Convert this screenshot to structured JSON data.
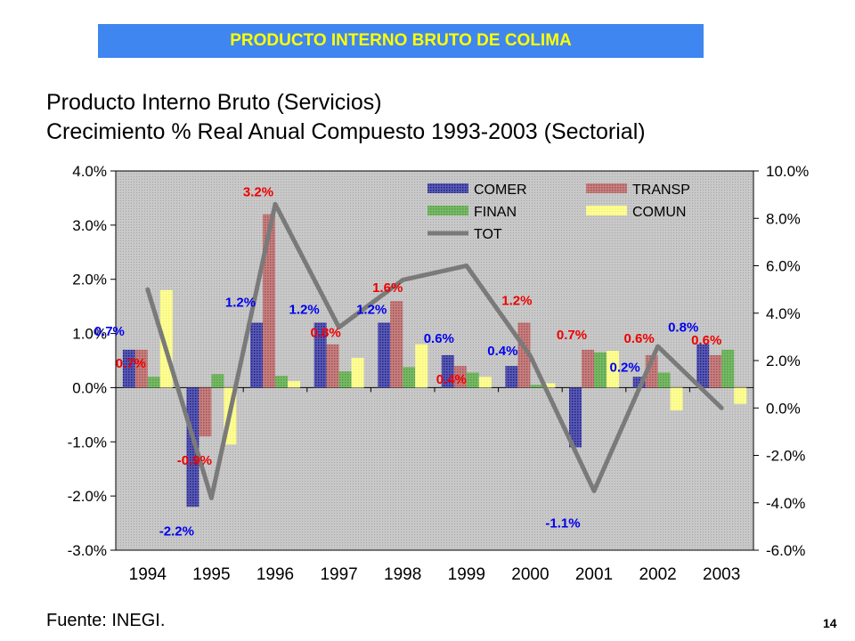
{
  "header": {
    "banner": "PRODUCTO INTERNO BRUTO DE COLIMA"
  },
  "titles": {
    "line1": "Producto Interno Bruto (Servicios)",
    "line2": "Crecimiento % Real Anual Compuesto 1993-2003 (Sectorial)"
  },
  "footer": {
    "source": "Fuente: INEGI.",
    "page": "14"
  },
  "colors": {
    "COMER": "#3a3a9a",
    "TRANSP": "#b86a6a",
    "FINAN": "#66aa55",
    "COMUN": "#ffff88",
    "TOT": "#7a7a7a",
    "label_blue": "#0000ee",
    "label_red": "#ee0000",
    "plot_bg": "#c8c8c8"
  },
  "chart_data": {
    "type": "bar",
    "categories": [
      "1994",
      "1995",
      "1996",
      "1997",
      "1998",
      "1999",
      "2000",
      "2001",
      "2002",
      "2003"
    ],
    "y_left": {
      "ticks": [
        "4.0%",
        "3.0%",
        "2.0%",
        "1.0%",
        "0.0%",
        "-1.0%",
        "-2.0%",
        "-3.0%"
      ],
      "min": -3.0,
      "max": 4.0,
      "step": 1.0
    },
    "y_right": {
      "ticks": [
        "10.0%",
        "8.0%",
        "6.0%",
        "4.0%",
        "2.0%",
        "0.0%",
        "-2.0%",
        "-4.0%",
        "-6.0%"
      ],
      "min": -6.0,
      "max": 10.0,
      "step": 2.0
    },
    "series": [
      {
        "name": "COMER",
        "axis": "left",
        "kind": "bar",
        "values": [
          0.7,
          -2.2,
          1.2,
          1.2,
          1.2,
          0.6,
          0.4,
          -1.1,
          0.2,
          0.8
        ]
      },
      {
        "name": "TRANSP",
        "axis": "left",
        "kind": "bar",
        "values": [
          0.7,
          -0.9,
          3.2,
          0.8,
          1.6,
          0.4,
          1.2,
          0.7,
          0.6,
          0.6
        ]
      },
      {
        "name": "FINAN",
        "axis": "left",
        "kind": "bar",
        "values": [
          0.2,
          0.25,
          0.22,
          0.3,
          0.38,
          0.28,
          0.05,
          0.65,
          0.28,
          0.7
        ]
      },
      {
        "name": "COMUN",
        "axis": "left",
        "kind": "bar",
        "values": [
          1.8,
          -1.05,
          0.12,
          0.55,
          0.8,
          0.2,
          0.08,
          0.68,
          -0.42,
          -0.3
        ]
      },
      {
        "name": "TOT",
        "axis": "right",
        "kind": "line",
        "values": [
          5.0,
          -3.8,
          8.6,
          3.4,
          5.4,
          6.0,
          2.2,
          -3.5,
          2.6,
          0.0
        ]
      }
    ],
    "data_labels": [
      {
        "category": "1994",
        "series": "COMER",
        "text": "0.7%",
        "color": "blue"
      },
      {
        "category": "1994",
        "series": "TRANSP",
        "text": "0.7%",
        "color": "red"
      },
      {
        "category": "1995",
        "series": "COMER",
        "text": "-2.2%",
        "color": "blue"
      },
      {
        "category": "1995",
        "series": "TRANSP",
        "text": "-0.9%",
        "color": "red"
      },
      {
        "category": "1996",
        "series": "COMER",
        "text": "1.2%",
        "color": "blue"
      },
      {
        "category": "1996",
        "series": "TRANSP",
        "text": "3.2%",
        "color": "red"
      },
      {
        "category": "1997",
        "series": "COMER",
        "text": "1.2%",
        "color": "blue"
      },
      {
        "category": "1997",
        "series": "TRANSP",
        "text": "0.8%",
        "color": "red"
      },
      {
        "category": "1998",
        "series": "COMER",
        "text": "1.2%",
        "color": "blue"
      },
      {
        "category": "1998",
        "series": "TRANSP",
        "text": "1.6%",
        "color": "red"
      },
      {
        "category": "1999",
        "series": "COMER",
        "text": "0.6%",
        "color": "blue"
      },
      {
        "category": "1999",
        "series": "TRANSP",
        "text": "0.4%",
        "color": "red"
      },
      {
        "category": "2000",
        "series": "COMER",
        "text": "0.4%",
        "color": "blue"
      },
      {
        "category": "2000",
        "series": "TRANSP",
        "text": "1.2%",
        "color": "red"
      },
      {
        "category": "2001",
        "series": "COMER",
        "text": "-1.1%",
        "color": "blue"
      },
      {
        "category": "2001",
        "series": "TRANSP",
        "text": "0.7%",
        "color": "red"
      },
      {
        "category": "2002",
        "series": "COMER",
        "text": "0.2%",
        "color": "blue"
      },
      {
        "category": "2002",
        "series": "TRANSP",
        "text": "0.6%",
        "color": "red"
      },
      {
        "category": "2003",
        "series": "COMER",
        "text": "0.8%",
        "color": "blue"
      },
      {
        "category": "2003",
        "series": "TRANSP",
        "text": "0.6%",
        "color": "red"
      }
    ],
    "legend": {
      "placement": "top-right",
      "entries": [
        "COMER",
        "TRANSP",
        "FINAN",
        "COMUN",
        "TOT"
      ]
    },
    "grid": false
  }
}
